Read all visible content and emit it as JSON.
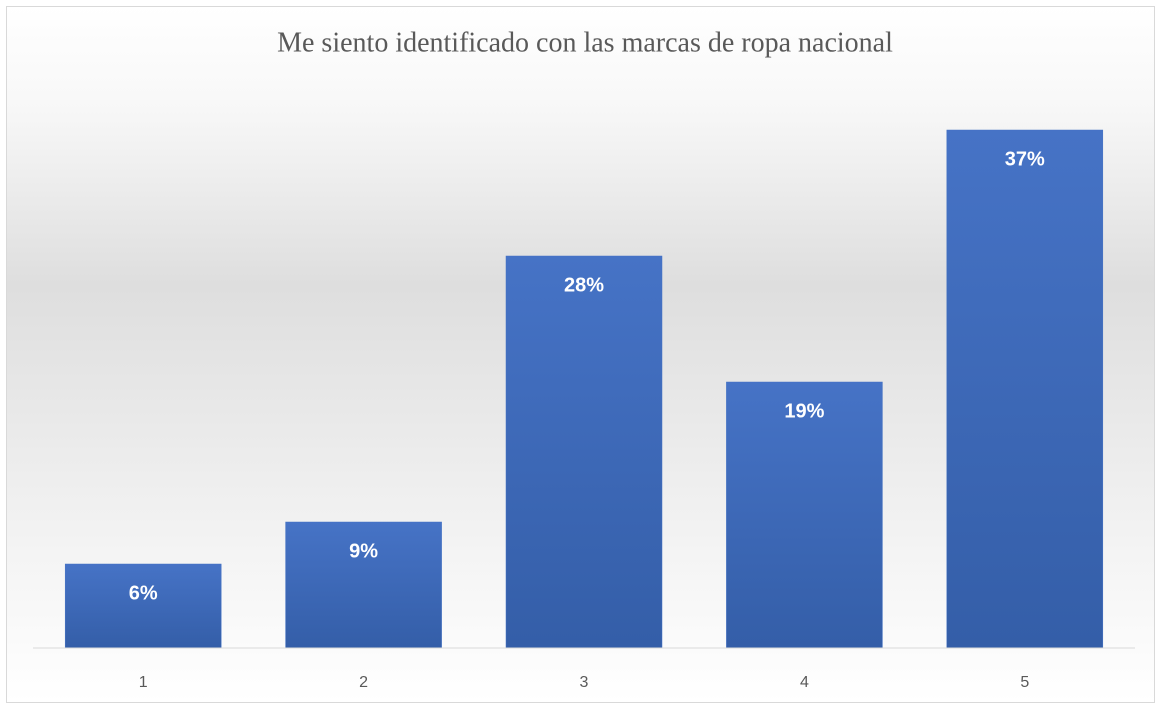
{
  "chart_data": {
    "type": "bar",
    "title": "Me siento identificado con las marcas de ropa nacional",
    "categories": [
      "1",
      "2",
      "3",
      "4",
      "5"
    ],
    "values": [
      6,
      9,
      28,
      19,
      37
    ],
    "value_labels": [
      "6%",
      "9%",
      "28%",
      "19%",
      "37%"
    ],
    "color": "#4472c4",
    "ylim": [
      0,
      40
    ]
  }
}
